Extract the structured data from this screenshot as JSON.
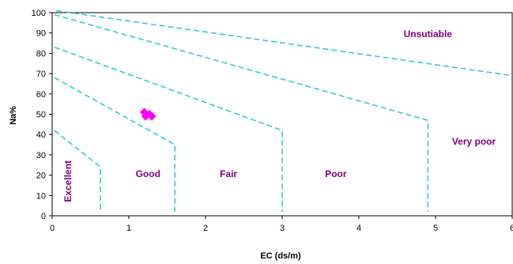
{
  "chart_data": {
    "type": "scatter",
    "title": "",
    "xlabel": "EC (ds/m)",
    "ylabel": "Na%",
    "xlim": [
      0,
      6
    ],
    "ylim": [
      0,
      100
    ],
    "xticks": [
      0,
      1,
      2,
      3,
      4,
      5,
      6
    ],
    "yticks": [
      0,
      10,
      20,
      30,
      40,
      50,
      60,
      70,
      80,
      90,
      100
    ],
    "grid": false,
    "legend": "none",
    "boundary_color": "#33cccc",
    "label_color": "#800080",
    "point_color": "#ff00ff",
    "boundaries": [
      {
        "points": [
          [
            0.03,
            42
          ],
          [
            0.63,
            24
          ],
          [
            0.63,
            2
          ]
        ]
      },
      {
        "points": [
          [
            0.03,
            68
          ],
          [
            1.6,
            35
          ],
          [
            1.6,
            2
          ]
        ]
      },
      {
        "points": [
          [
            0.03,
            83
          ],
          [
            3.0,
            42
          ],
          [
            3.0,
            2
          ]
        ]
      },
      {
        "points": [
          [
            0.03,
            99
          ],
          [
            4.9,
            47
          ],
          [
            4.9,
            2
          ]
        ]
      },
      {
        "points": [
          [
            0.05,
            101
          ],
          [
            6.0,
            69
          ]
        ]
      }
    ],
    "zones": [
      {
        "label": "Excellent",
        "x": 0.25,
        "y": 17,
        "rotate": true
      },
      {
        "label": "Good",
        "x": 1.25,
        "y": 19
      },
      {
        "label": "Fair",
        "x": 2.3,
        "y": 19
      },
      {
        "label": "Poor",
        "x": 3.7,
        "y": 19
      },
      {
        "label": "Very poor",
        "x": 5.5,
        "y": 35
      },
      {
        "label": "Unsutiable",
        "x": 4.9,
        "y": 88
      }
    ],
    "series": [
      {
        "x": [
          1.2,
          1.27,
          1.3,
          1.22
        ],
        "y": [
          51,
          50,
          49,
          49
        ]
      }
    ]
  }
}
